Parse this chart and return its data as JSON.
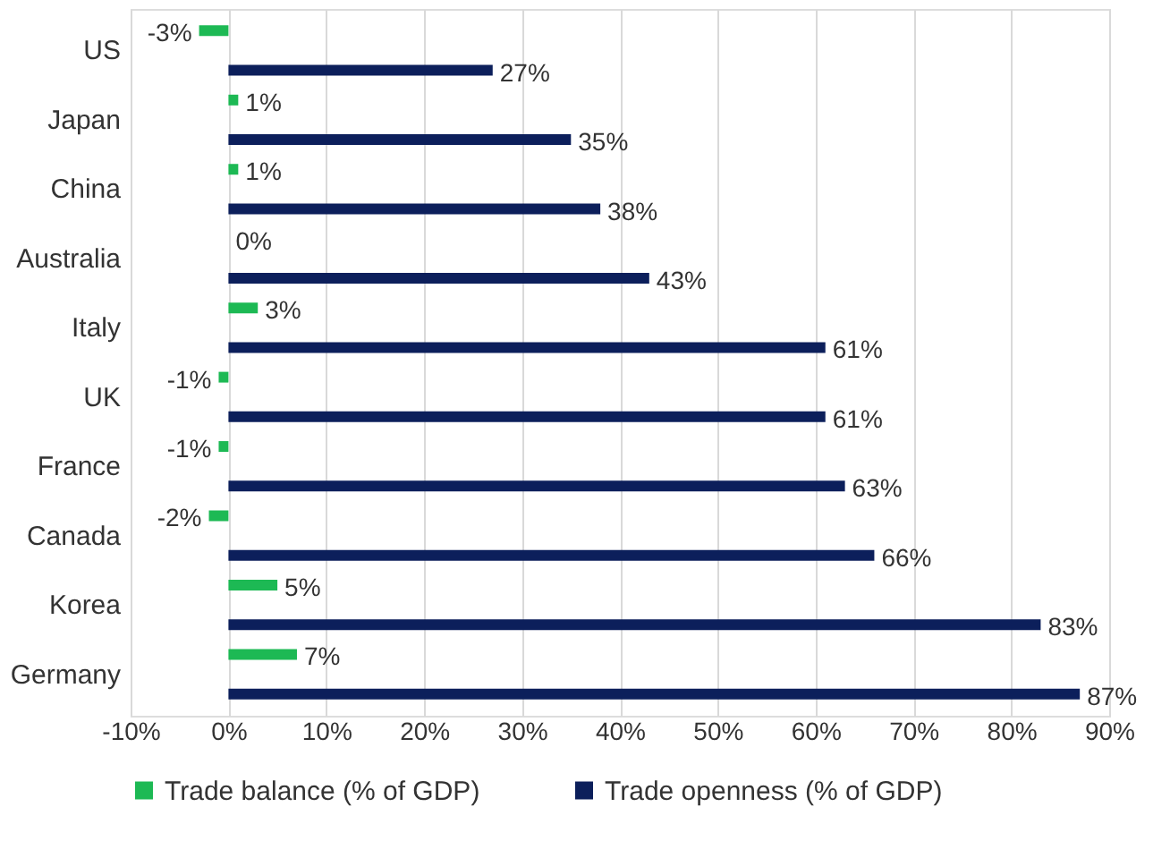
{
  "chart_data": {
    "type": "bar",
    "orientation": "horizontal",
    "categories": [
      "US",
      "Japan",
      "China",
      "Australia",
      "Italy",
      "UK",
      "France",
      "Canada",
      "Korea",
      "Germany"
    ],
    "series": [
      {
        "name": "Trade balance (% of GDP)",
        "color": "#1db954",
        "values": [
          -3,
          1,
          1,
          0,
          3,
          -1,
          -1,
          -2,
          5,
          7
        ],
        "value_labels": [
          "-3%",
          "1%",
          "1%",
          "0%",
          "3%",
          "-1%",
          "-1%",
          "-2%",
          "5%",
          "7%"
        ]
      },
      {
        "name": "Trade openness (% of GDP)",
        "color": "#0c1f5b",
        "values": [
          27,
          35,
          38,
          43,
          61,
          61,
          63,
          66,
          83,
          87
        ],
        "value_labels": [
          "27%",
          "35%",
          "38%",
          "43%",
          "61%",
          "61%",
          "63%",
          "66%",
          "83%",
          "87%"
        ]
      }
    ],
    "xlim": [
      -10,
      90
    ],
    "xticks": [
      {
        "value": -10,
        "label": "-10%"
      },
      {
        "value": 0,
        "label": "0%"
      },
      {
        "value": 10,
        "label": "10%"
      },
      {
        "value": 20,
        "label": "20%"
      },
      {
        "value": 30,
        "label": "30%"
      },
      {
        "value": 40,
        "label": "40%"
      },
      {
        "value": 50,
        "label": "50%"
      },
      {
        "value": 60,
        "label": "60%"
      },
      {
        "value": 70,
        "label": "70%"
      },
      {
        "value": 80,
        "label": "80%"
      },
      {
        "value": 90,
        "label": "90%"
      }
    ],
    "grid": "x",
    "legend": "bottom"
  }
}
